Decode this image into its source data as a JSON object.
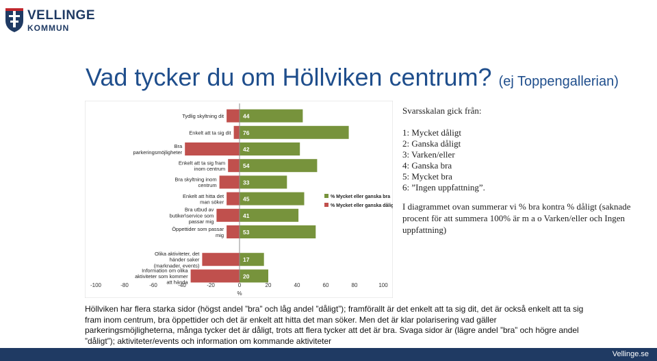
{
  "brand": {
    "name_line1": "VELLINGE",
    "name_line2": "KOMMUN",
    "color_navy": "#1f3a63",
    "color_red": "#c0272d"
  },
  "slide": {
    "title": "Vad tycker du om Höllviken centrum?",
    "title_note": "(ej Toppengallerian)"
  },
  "scale_info": {
    "heading": "Svarsskalan gick från:",
    "items": [
      "1: Mycket dåligt",
      "2: Ganska dåligt",
      "3: Varken/eller",
      "4: Ganska bra",
      "5: Mycket bra",
      "6: ”Ingen uppfattning”."
    ]
  },
  "summary_note": "I diagrammet ovan summerar vi % bra kontra % dåligt (saknade procent för att summera 100% är m a o Varken/eller och Ingen uppfattning)",
  "bottom_text": "Höllviken har flera starka sidor (högst andel ”bra” och låg andel ”dåligt”); framförallt är det enkelt att ta sig dit, det är också enkelt att ta sig fram inom centrum, bra öppettider och det är enkelt att hitta det man söker. Men det är klar polarisering vad gäller parkeringsmöjligheterna, många tycker det är dåligt, trots att flera tycker att det är bra. Svaga sidor är (lägre andel ”bra” och högre andel ”dåligt”); aktiviteter/events och information om kommande aktiviteter",
  "footer": {
    "text": "Vellinge.se"
  },
  "chart_data": {
    "type": "bar",
    "orientation": "horizontal",
    "categories": [
      "Tydlig skyltning dit",
      "Enkelt att ta sig dit",
      "Bra parkeringsmöjligheter",
      "Enkelt att ta sig fram inom centrum",
      "Bra skyltning inom centrum",
      "Enkelt att hitta det man söker",
      "Bra utbud av butiker\\service som passar mig",
      "Öppettider som passar mig",
      "Olika aktiviteter, det händer saker (marknader, events)",
      "Information om olika aktiviteter som kommer att hända"
    ],
    "series": [
      {
        "name": "% Mycket eller ganska bra",
        "color": "#77933c",
        "values": [
          44,
          76,
          42,
          54,
          33,
          45,
          41,
          53,
          17,
          20
        ]
      },
      {
        "name": "% Mycket eller ganska dåligt",
        "color": "#c0504d",
        "values": [
          -9,
          -4,
          -38,
          -8,
          -14,
          -9,
          -16,
          -9,
          -26,
          -34
        ]
      }
    ],
    "data_labels": [
      "44",
      "76",
      "42",
      "54",
      "33",
      "45",
      "41",
      "53",
      "17",
      "20"
    ],
    "xlim": [
      -100,
      100
    ],
    "xticks": [
      "-100",
      "-80",
      "-60",
      "-40",
      "-20",
      "0",
      "20",
      "40",
      "60",
      "80",
      "100"
    ],
    "xlabel": "%",
    "legend_position": "right",
    "grid": false
  }
}
